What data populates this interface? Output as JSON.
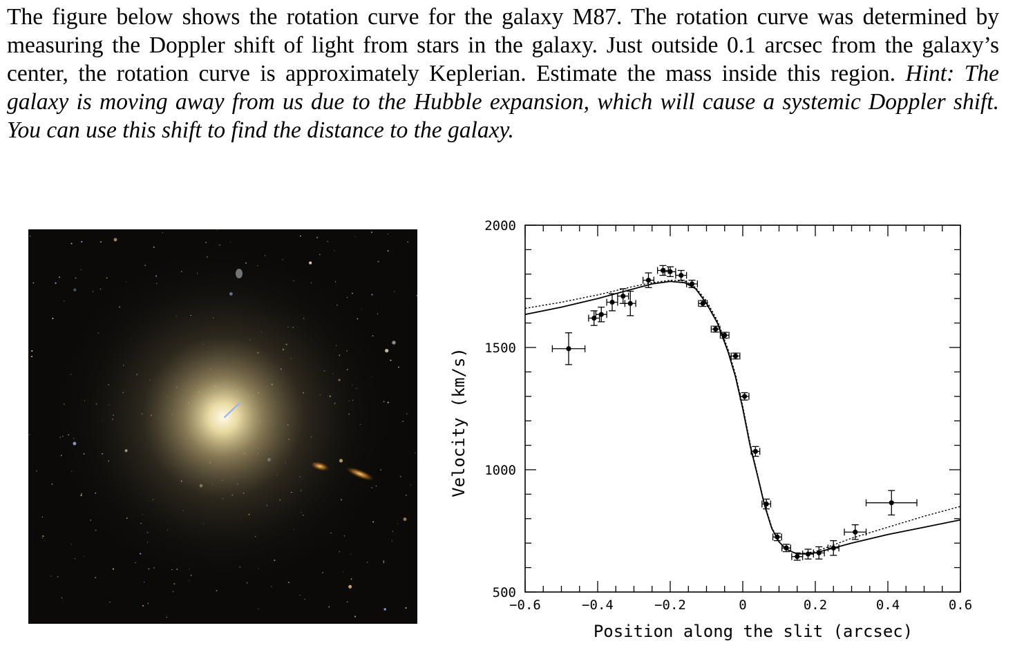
{
  "problem": {
    "text": "The figure below shows the rotation curve for the galaxy M87.  The rotation curve was determined by measuring the Doppler shift of light from stars in the galaxy.  Just outside 0.1 arcsec from the galaxy’s center, the rotation curve is approximately Keplerian.  Estimate the mass inside this region.",
    "hint": "Hint: The galaxy is moving away from us due to the Hubble expansion, which will cause a systemic Doppler shift.  You can use this shift to find the distance to the galaxy."
  },
  "photo": {
    "subject": "galaxy-photo",
    "colors": {
      "background": "#0b0a08",
      "core": "#fff6cf",
      "halo": "#c9b98e",
      "companion": "#f0a23a"
    }
  },
  "chart_data": {
    "type": "scatter",
    "title": "",
    "xlabel": "Position along the slit (arcsec)",
    "ylabel": "Velocity (km/s)",
    "xlim": [
      -0.6,
      0.6
    ],
    "ylim": [
      500,
      2000
    ],
    "x_ticks": [
      -0.6,
      -0.4,
      -0.2,
      0,
      0.2,
      0.4,
      0.6
    ],
    "x_tick_labels": [
      "−0.6",
      "−0.4",
      "−0.2",
      "0",
      "0.2",
      "0.4",
      "0.6"
    ],
    "y_ticks": [
      500,
      1000,
      1500,
      2000
    ],
    "y_tick_labels": [
      "500",
      "1000",
      "1500",
      "2000"
    ],
    "grid": false,
    "legend": "none",
    "series": [
      {
        "kind": "points-with-error-bars",
        "points": [
          {
            "x": -0.48,
            "y": 1495,
            "xerr": 0.045,
            "yerr": 65
          },
          {
            "x": -0.41,
            "y": 1620,
            "xerr": 0.015,
            "yerr": 30
          },
          {
            "x": -0.39,
            "y": 1635,
            "xerr": 0.015,
            "yerr": 30
          },
          {
            "x": -0.36,
            "y": 1685,
            "xerr": 0.015,
            "yerr": 35
          },
          {
            "x": -0.33,
            "y": 1710,
            "xerr": 0.015,
            "yerr": 30
          },
          {
            "x": -0.31,
            "y": 1680,
            "xerr": 0.015,
            "yerr": 50
          },
          {
            "x": -0.26,
            "y": 1775,
            "xerr": 0.015,
            "yerr": 30
          },
          {
            "x": -0.22,
            "y": 1815,
            "xerr": 0.015,
            "yerr": 20
          },
          {
            "x": -0.2,
            "y": 1810,
            "xerr": 0.015,
            "yerr": 20
          },
          {
            "x": -0.17,
            "y": 1795,
            "xerr": 0.015,
            "yerr": 20
          },
          {
            "x": -0.14,
            "y": 1760,
            "xerr": 0.015,
            "yerr": 15
          },
          {
            "x": -0.11,
            "y": 1680,
            "xerr": 0.012,
            "yerr": 12
          },
          {
            "x": -0.075,
            "y": 1575,
            "xerr": 0.012,
            "yerr": 12
          },
          {
            "x": -0.05,
            "y": 1550,
            "xerr": 0.012,
            "yerr": 12
          },
          {
            "x": -0.02,
            "y": 1465,
            "xerr": 0.012,
            "yerr": 12
          },
          {
            "x": 0.005,
            "y": 1300,
            "xerr": 0.012,
            "yerr": 15
          },
          {
            "x": 0.035,
            "y": 1075,
            "xerr": 0.012,
            "yerr": 20
          },
          {
            "x": 0.065,
            "y": 860,
            "xerr": 0.012,
            "yerr": 20
          },
          {
            "x": 0.095,
            "y": 725,
            "xerr": 0.012,
            "yerr": 15
          },
          {
            "x": 0.12,
            "y": 680,
            "xerr": 0.012,
            "yerr": 15
          },
          {
            "x": 0.15,
            "y": 645,
            "xerr": 0.015,
            "yerr": 15
          },
          {
            "x": 0.18,
            "y": 655,
            "xerr": 0.015,
            "yerr": 20
          },
          {
            "x": 0.21,
            "y": 660,
            "xerr": 0.015,
            "yerr": 25
          },
          {
            "x": 0.25,
            "y": 680,
            "xerr": 0.015,
            "yerr": 30
          },
          {
            "x": 0.31,
            "y": 745,
            "xerr": 0.03,
            "yerr": 30
          },
          {
            "x": 0.41,
            "y": 865,
            "xerr": 0.07,
            "yerr": 50
          }
        ]
      },
      {
        "kind": "model-solid",
        "x": [
          -0.6,
          -0.5,
          -0.4,
          -0.3,
          -0.25,
          -0.2,
          -0.16,
          -0.13,
          -0.1,
          -0.07,
          -0.04,
          -0.02,
          0,
          0.02,
          0.04,
          0.06,
          0.08,
          0.1,
          0.12,
          0.15,
          0.2,
          0.3,
          0.4,
          0.5,
          0.6
        ],
        "y": [
          1635,
          1665,
          1700,
          1740,
          1760,
          1770,
          1765,
          1740,
          1680,
          1600,
          1480,
          1380,
          1250,
          1100,
          980,
          855,
          760,
          705,
          675,
          655,
          660,
          700,
          735,
          765,
          795
        ]
      },
      {
        "kind": "model-dotted",
        "x": [
          -0.6,
          -0.5,
          -0.4,
          -0.3,
          -0.25,
          -0.2,
          -0.16,
          -0.13,
          -0.1,
          -0.07,
          -0.04,
          -0.02,
          0,
          0.02,
          0.04,
          0.06,
          0.08,
          0.1,
          0.12,
          0.15,
          0.2,
          0.3,
          0.4,
          0.5,
          0.6
        ],
        "y": [
          1660,
          1685,
          1715,
          1750,
          1765,
          1775,
          1772,
          1745,
          1690,
          1610,
          1490,
          1390,
          1260,
          1110,
          985,
          860,
          765,
          705,
          675,
          655,
          665,
          720,
          765,
          810,
          850
        ]
      }
    ]
  }
}
